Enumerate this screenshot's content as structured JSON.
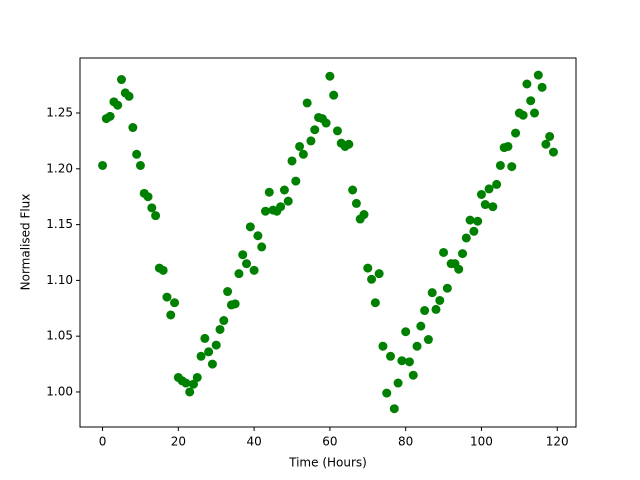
{
  "chart_data": {
    "type": "scatter",
    "xlabel": "Time (Hours)",
    "ylabel": "Normalised Flux",
    "color": "#008000",
    "x": [
      0,
      1,
      2,
      3,
      4,
      5,
      6,
      7,
      8,
      9,
      10,
      11,
      12,
      13,
      14,
      15,
      16,
      17,
      18,
      19,
      20,
      21,
      22,
      23,
      24,
      25,
      26,
      27,
      28,
      29,
      30,
      31,
      32,
      33,
      34,
      35,
      36,
      37,
      38,
      39,
      40,
      41,
      42,
      43,
      44,
      45,
      46,
      47,
      48,
      49,
      50,
      51,
      52,
      53,
      54,
      55,
      56,
      57,
      58,
      59,
      60,
      61,
      62,
      63,
      64,
      65,
      66,
      67,
      68,
      69,
      70,
      71,
      72,
      73,
      74,
      75,
      76,
      77,
      78,
      79,
      80,
      81,
      82,
      83,
      84,
      85,
      86,
      87,
      88,
      89,
      90,
      91,
      92,
      93,
      94,
      95,
      96,
      97,
      98,
      99,
      100,
      101,
      102,
      103,
      104,
      105,
      106,
      107,
      108,
      109,
      110,
      111,
      112,
      113,
      114,
      115,
      116,
      117,
      118,
      119
    ],
    "values": [
      1.203,
      1.245,
      1.247,
      1.26,
      1.257,
      1.28,
      1.268,
      1.265,
      1.237,
      1.213,
      1.203,
      1.178,
      1.175,
      1.165,
      1.158,
      1.111,
      1.109,
      1.085,
      1.069,
      1.08,
      1.013,
      1.01,
      1.008,
      1.0,
      1.007,
      1.013,
      1.032,
      1.048,
      1.036,
      1.025,
      1.042,
      1.056,
      1.064,
      1.09,
      1.078,
      1.079,
      1.106,
      1.123,
      1.115,
      1.148,
      1.109,
      1.14,
      1.13,
      1.162,
      1.179,
      1.163,
      1.162,
      1.166,
      1.181,
      1.171,
      1.207,
      1.189,
      1.22,
      1.213,
      1.259,
      1.225,
      1.235,
      1.246,
      1.245,
      1.241,
      1.283,
      1.266,
      1.234,
      1.223,
      1.22,
      1.222,
      1.181,
      1.169,
      1.155,
      1.159,
      1.111,
      1.101,
      1.08,
      1.106,
      1.041,
      0.999,
      1.032,
      0.985,
      1.008,
      1.028,
      1.054,
      1.027,
      1.015,
      1.041,
      1.059,
      1.073,
      1.047,
      1.089,
      1.074,
      1.082,
      1.125,
      1.093,
      1.115,
      1.115,
      1.11,
      1.124,
      1.138,
      1.154,
      1.144,
      1.153,
      1.177,
      1.168,
      1.182,
      1.166,
      1.186,
      1.203,
      1.219,
      1.22,
      1.202,
      1.232,
      1.25,
      1.248,
      1.276,
      1.261,
      1.25,
      1.284,
      1.273,
      1.222,
      1.229,
      1.215
    ],
    "xlim": [
      -5.95,
      124.95
    ],
    "ylim": [
      0.9686,
      1.2993
    ],
    "xticks": [
      0,
      20,
      40,
      60,
      80,
      100,
      120
    ],
    "yticks": [
      {
        "value": 1.0,
        "label": "1.00"
      },
      1.05,
      {
        "value": 1.1,
        "label": "1.10"
      },
      1.15,
      {
        "value": 1.2,
        "label": "1.20"
      },
      1.25
    ]
  }
}
